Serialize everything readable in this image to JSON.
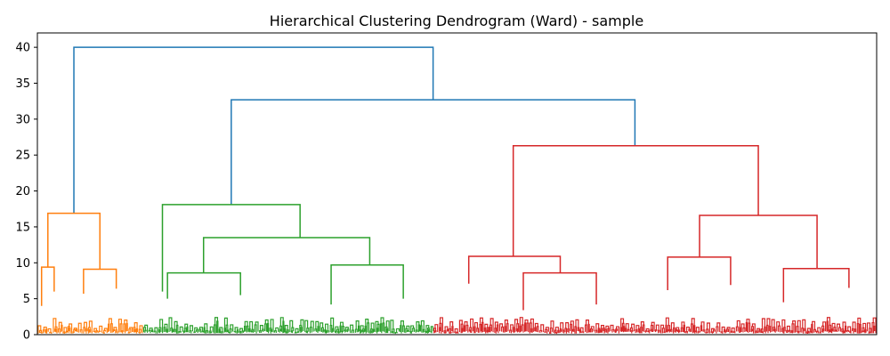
{
  "chart_data": {
    "type": "dendrogram",
    "title": "Hierarchical Clustering Dendrogram (Ward) - sample",
    "xlabel": "",
    "ylabel": "",
    "ylim": [
      0,
      42
    ],
    "yticks": [
      0,
      5,
      10,
      15,
      20,
      25,
      30,
      35,
      40
    ],
    "leaf_range": [
      0,
      1000
    ],
    "link_color_top": "#1f77b4",
    "clusters": [
      {
        "color": "#ff7f0e",
        "leaf_span": [
          0,
          126
        ],
        "merge_height": 16.9
      },
      {
        "color": "#2ca02c",
        "leaf_span": [
          126,
          472
        ],
        "merge_height": 18.1
      },
      {
        "color": "#d62728",
        "leaf_span": [
          472,
          1000
        ],
        "merge_height": 26.3
      }
    ],
    "links": [
      {
        "color": "#1f77b4",
        "left": [
          43.5,
          16.9
        ],
        "right": [
          471.5,
          32.7
        ],
        "height": 40.0
      },
      {
        "color": "#1f77b4",
        "left": [
          231.0,
          18.1
        ],
        "right": [
          712.0,
          26.3
        ],
        "height": 32.7
      },
      {
        "color": "#ff7f0e",
        "left": [
          12.5,
          9.4
        ],
        "right": [
          74.5,
          9.1
        ],
        "height": 16.9
      },
      {
        "color": "#ff7f0e",
        "left": [
          5.0,
          4.0
        ],
        "right": [
          20.0,
          6.0
        ],
        "height": 9.4
      },
      {
        "color": "#ff7f0e",
        "left": [
          55.0,
          5.7
        ],
        "right": [
          94.0,
          6.4
        ],
        "height": 9.1
      },
      {
        "color": "#2ca02c",
        "left": [
          149.0,
          6.0
        ],
        "right": [
          313.0,
          13.5
        ],
        "height": 18.1
      },
      {
        "color": "#2ca02c",
        "left": [
          198.0,
          8.6
        ],
        "right": [
          396.0,
          9.7
        ],
        "height": 13.5
      },
      {
        "color": "#2ca02c",
        "left": [
          155.0,
          5.0
        ],
        "right": [
          242.0,
          5.5
        ],
        "height": 8.6
      },
      {
        "color": "#2ca02c",
        "left": [
          350.0,
          4.2
        ],
        "right": [
          436.0,
          5.0
        ],
        "height": 9.7
      },
      {
        "color": "#d62728",
        "left": [
          567.0,
          10.9
        ],
        "right": [
          859.0,
          16.6
        ],
        "height": 26.3
      },
      {
        "color": "#d62728",
        "left": [
          514.0,
          7.1
        ],
        "right": [
          623.0,
          8.6
        ],
        "height": 10.9
      },
      {
        "color": "#d62728",
        "left": [
          789.0,
          10.8
        ],
        "right": [
          929.0,
          9.2
        ],
        "height": 16.6
      },
      {
        "color": "#d62728",
        "left": [
          579.0,
          3.4
        ],
        "right": [
          666.0,
          4.2
        ],
        "height": 8.6
      },
      {
        "color": "#d62728",
        "left": [
          751.0,
          6.2
        ],
        "right": [
          826.0,
          6.9
        ],
        "height": 10.8
      },
      {
        "color": "#d62728",
        "left": [
          889.0,
          4.5
        ],
        "right": [
          967.0,
          6.5
        ],
        "height": 9.2
      }
    ]
  }
}
